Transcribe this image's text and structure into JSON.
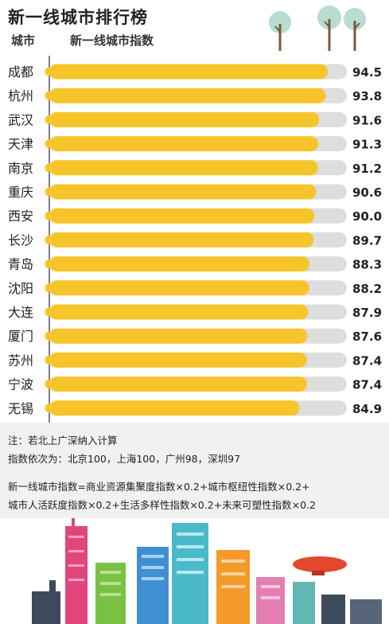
{
  "header": {
    "title": "新一线城市排行榜",
    "col_city": "城市",
    "col_index": "新一线城市指数"
  },
  "chart_data": {
    "type": "bar",
    "orientation": "horizontal",
    "categories": [
      "成都",
      "杭州",
      "武汉",
      "天津",
      "南京",
      "重庆",
      "西安",
      "长沙",
      "青岛",
      "沈阳",
      "大连",
      "厦门",
      "苏州",
      "宁波",
      "无锡"
    ],
    "values": [
      94.5,
      93.8,
      91.6,
      91.3,
      91.2,
      90.6,
      90.0,
      89.7,
      88.3,
      88.2,
      87.9,
      87.6,
      87.4,
      87.4,
      84.9
    ],
    "value_labels": [
      "94.5",
      "93.8",
      "91.6",
      "91.3",
      "91.2",
      "90.6",
      "90.0",
      "89.7",
      "88.3",
      "88.2",
      "87.9",
      "87.6",
      "87.4",
      "87.4",
      "84.9"
    ],
    "bar_color": "#f6c529",
    "track_color": "#dedede",
    "grid": false
  },
  "notes": {
    "line1": "注：若北上广深纳入计算",
    "line2": "指数依次为：北京100，上海100，广州98，深圳97",
    "line3": "新一线城市指数=商业资源集聚度指数×0.2+城市枢纽性指数×0.2+",
    "line4": "城市人活跃度指数×0.2+生活多样性指数×0.2+未来可塑性指数×0.2"
  }
}
